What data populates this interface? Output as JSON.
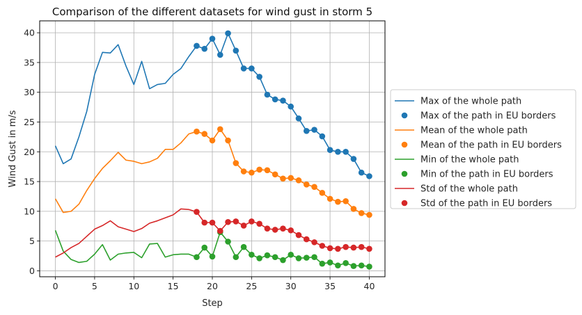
{
  "chart_data": {
    "type": "line",
    "title": "Comparison of the different datasets for wind gust in storm 5",
    "xlabel": "Step",
    "ylabel": "Wind Gust in m/s",
    "xlim": [
      -2,
      42
    ],
    "ylim": [
      -1,
      42
    ],
    "x_ticks": [
      0,
      5,
      10,
      15,
      20,
      25,
      30,
      35,
      40
    ],
    "y_ticks": [
      0,
      5,
      10,
      15,
      20,
      25,
      30,
      35,
      40
    ],
    "grid": true,
    "legend_position": "center-right-outside",
    "series": [
      {
        "name": "Max of the whole path",
        "kind": "line",
        "color": "#1f77b4",
        "x": [
          0,
          1,
          2,
          3,
          4,
          5,
          6,
          7,
          8,
          9,
          10,
          11,
          12,
          13,
          14,
          15,
          16,
          17,
          18,
          19,
          20,
          21,
          22,
          23,
          24,
          25,
          26,
          27,
          28,
          29,
          30,
          31,
          32,
          33,
          34,
          35,
          36,
          37,
          38,
          39,
          40
        ],
        "y": [
          21.0,
          18.0,
          18.8,
          22.5,
          26.8,
          33.0,
          36.7,
          36.6,
          38.0,
          34.4,
          31.3,
          35.2,
          30.6,
          31.3,
          31.5,
          33.0,
          34.0,
          36.0,
          37.8,
          37.3,
          39.0,
          36.3,
          39.9,
          37.0,
          34.0,
          34.0,
          32.6,
          29.6,
          28.8,
          28.6,
          27.6,
          25.6,
          23.5,
          23.7,
          22.6,
          20.3,
          20.0,
          20.0,
          18.8,
          16.5,
          15.9
        ]
      },
      {
        "name": "Max of the path in EU borders",
        "kind": "scatter",
        "color": "#1f77b4",
        "x": [
          18,
          19,
          20,
          21,
          22,
          23,
          24,
          25,
          26,
          27,
          28,
          29,
          30,
          31,
          32,
          33,
          34,
          35,
          36,
          37,
          38,
          39,
          40
        ],
        "y": [
          37.8,
          37.3,
          39.0,
          36.3,
          39.9,
          37.0,
          34.0,
          34.0,
          32.6,
          29.6,
          28.8,
          28.6,
          27.6,
          25.6,
          23.5,
          23.7,
          22.6,
          20.3,
          20.0,
          20.0,
          18.8,
          16.5,
          15.9
        ]
      },
      {
        "name": "Mean of the whole path",
        "kind": "line",
        "color": "#ff7f0e",
        "x": [
          0,
          1,
          2,
          3,
          4,
          5,
          6,
          7,
          8,
          9,
          10,
          11,
          12,
          13,
          14,
          15,
          16,
          17,
          18,
          19,
          20,
          21,
          22,
          23,
          24,
          25,
          26,
          27,
          28,
          29,
          30,
          31,
          32,
          33,
          34,
          35,
          36,
          37,
          38,
          39,
          40
        ],
        "y": [
          12.1,
          9.8,
          10.0,
          11.2,
          13.5,
          15.5,
          17.2,
          18.5,
          19.9,
          18.6,
          18.4,
          18.0,
          18.3,
          18.9,
          20.4,
          20.4,
          21.5,
          23.0,
          23.4,
          23.0,
          21.9,
          23.8,
          21.9,
          18.1,
          16.7,
          16.5,
          17.0,
          16.9,
          16.2,
          15.5,
          15.6,
          15.2,
          14.5,
          14.1,
          13.1,
          12.1,
          11.6,
          11.7,
          10.4,
          9.7,
          9.4
        ]
      },
      {
        "name": "Mean of the path in EU borders",
        "kind": "scatter",
        "color": "#ff7f0e",
        "x": [
          18,
          19,
          20,
          21,
          22,
          23,
          24,
          25,
          26,
          27,
          28,
          29,
          30,
          31,
          32,
          33,
          34,
          35,
          36,
          37,
          38,
          39,
          40
        ],
        "y": [
          23.4,
          23.0,
          21.9,
          23.8,
          21.9,
          18.1,
          16.7,
          16.5,
          17.0,
          16.9,
          16.2,
          15.5,
          15.6,
          15.2,
          14.5,
          14.1,
          13.1,
          12.1,
          11.6,
          11.7,
          10.4,
          9.7,
          9.4
        ]
      },
      {
        "name": "Min of the whole path",
        "kind": "line",
        "color": "#2ca02c",
        "x": [
          0,
          1,
          2,
          3,
          4,
          5,
          6,
          7,
          8,
          9,
          10,
          11,
          12,
          13,
          14,
          15,
          16,
          17,
          18,
          19,
          20,
          21,
          22,
          23,
          24,
          25,
          26,
          27,
          28,
          29,
          30,
          31,
          32,
          33,
          34,
          35,
          36,
          37,
          38,
          39,
          40
        ],
        "y": [
          6.8,
          3.3,
          1.9,
          1.4,
          1.6,
          2.8,
          4.4,
          1.8,
          2.8,
          3.0,
          3.1,
          2.2,
          4.5,
          4.6,
          2.3,
          2.7,
          2.8,
          2.8,
          2.3,
          3.9,
          2.4,
          6.5,
          4.9,
          2.3,
          4.0,
          2.7,
          2.1,
          2.6,
          2.3,
          1.8,
          2.7,
          2.1,
          2.2,
          2.3,
          1.2,
          1.4,
          0.9,
          1.3,
          0.8,
          0.9,
          0.7
        ]
      },
      {
        "name": "Min of the path in EU borders",
        "kind": "scatter",
        "color": "#2ca02c",
        "x": [
          18,
          19,
          20,
          21,
          22,
          23,
          24,
          25,
          26,
          27,
          28,
          29,
          30,
          31,
          32,
          33,
          34,
          35,
          36,
          37,
          38,
          39,
          40
        ],
        "y": [
          2.3,
          3.9,
          2.4,
          6.5,
          4.9,
          2.3,
          4.0,
          2.7,
          2.1,
          2.6,
          2.3,
          1.8,
          2.7,
          2.1,
          2.2,
          2.3,
          1.2,
          1.4,
          0.9,
          1.3,
          0.8,
          0.9,
          0.7
        ]
      },
      {
        "name": "Std of the whole path",
        "kind": "line",
        "color": "#d62728",
        "x": [
          0,
          1,
          2,
          3,
          4,
          5,
          6,
          7,
          8,
          9,
          10,
          11,
          12,
          13,
          14,
          15,
          16,
          17,
          18,
          19,
          20,
          21,
          22,
          23,
          24,
          25,
          26,
          27,
          28,
          29,
          30,
          31,
          32,
          33,
          34,
          35,
          36,
          37,
          38,
          39,
          40
        ],
        "y": [
          2.3,
          3.0,
          3.9,
          4.6,
          5.8,
          7.0,
          7.6,
          8.4,
          7.4,
          7.0,
          6.6,
          7.1,
          8.0,
          8.4,
          8.9,
          9.4,
          10.4,
          10.3,
          9.9,
          8.1,
          8.1,
          6.7,
          8.2,
          8.3,
          7.6,
          8.3,
          7.9,
          7.1,
          6.9,
          7.1,
          6.8,
          6.0,
          5.3,
          4.8,
          4.2,
          3.8,
          3.7,
          4.0,
          3.9,
          4.0,
          3.7
        ]
      },
      {
        "name": "Std of the path in EU borders",
        "kind": "scatter",
        "color": "#d62728",
        "x": [
          18,
          19,
          20,
          21,
          22,
          23,
          24,
          25,
          26,
          27,
          28,
          29,
          30,
          31,
          32,
          33,
          34,
          35,
          36,
          37,
          38,
          39,
          40
        ],
        "y": [
          9.9,
          8.1,
          8.1,
          6.7,
          8.2,
          8.3,
          7.6,
          8.3,
          7.9,
          7.1,
          6.9,
          7.1,
          6.8,
          6.0,
          5.3,
          4.8,
          4.2,
          3.8,
          3.7,
          4.0,
          3.9,
          4.0,
          3.7
        ]
      }
    ]
  }
}
